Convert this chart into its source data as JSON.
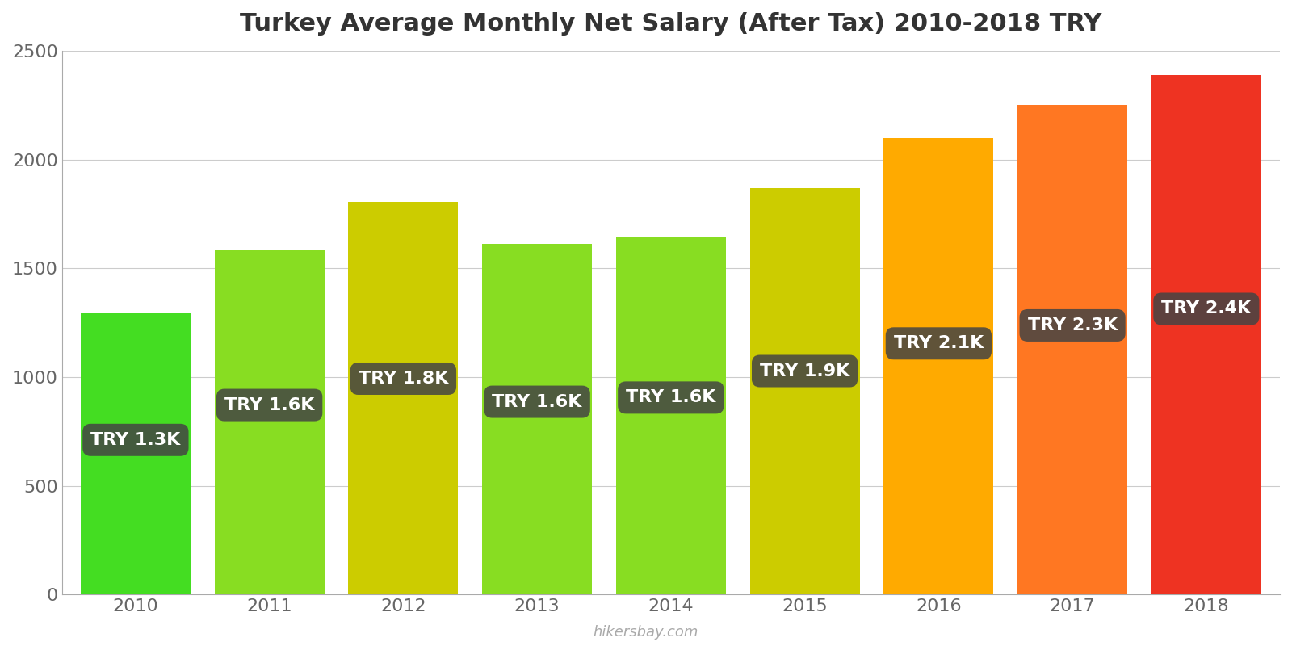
{
  "title": "Turkey Average Monthly Net Salary (After Tax) 2010-2018 TRY",
  "years": [
    2010,
    2011,
    2012,
    2013,
    2014,
    2015,
    2016,
    2017,
    2018
  ],
  "values": [
    1292,
    1584,
    1804,
    1611,
    1646,
    1868,
    2099,
    2250,
    2388
  ],
  "labels": [
    "TRY 1.3K",
    "TRY 1.6K",
    "TRY 1.8K",
    "TRY 1.6K",
    "TRY 1.6K",
    "TRY 1.9K",
    "TRY 2.1K",
    "TRY 2.3K",
    "TRY 2.4K"
  ],
  "bar_colors": [
    "#44dd22",
    "#88dd22",
    "#cccc00",
    "#88dd22",
    "#88dd22",
    "#cccc00",
    "#ffaa00",
    "#ff7722",
    "#ee3322"
  ],
  "background_color": "#ffffff",
  "ylim": [
    0,
    2500
  ],
  "yticks": [
    0,
    500,
    1000,
    1500,
    2000,
    2500
  ],
  "title_fontsize": 22,
  "tick_fontsize": 16,
  "label_fontsize": 16,
  "watermark": "hikersbay.com",
  "bar_width": 0.82
}
